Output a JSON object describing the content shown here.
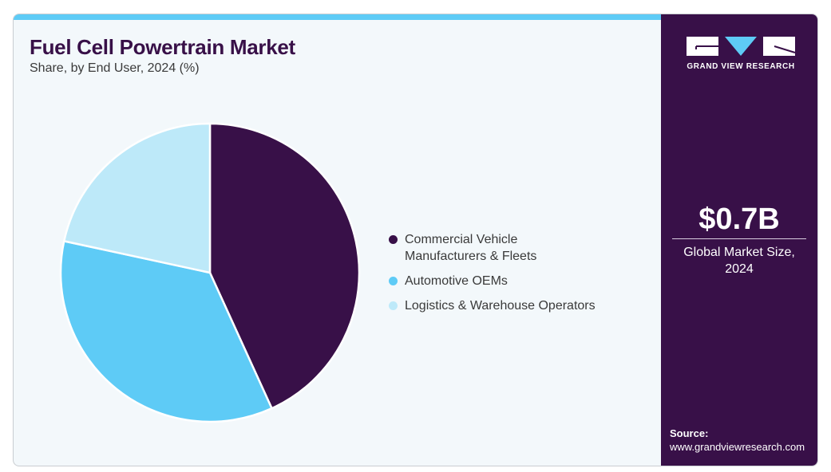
{
  "header": {
    "title": "Fuel Cell Powertrain Market",
    "subtitle": "Share, by End User, 2024 (%)"
  },
  "brand": {
    "name": "GRAND VIEW RESEARCH",
    "colors": {
      "dark": "#381048",
      "accent": "#5ecbf6",
      "light": "#bde9f9"
    }
  },
  "market": {
    "value": "$0.7B",
    "label_line1": "Global Market Size,",
    "label_line2": "2024"
  },
  "source": {
    "label": "Source:",
    "url": "www.grandviewresearch.com"
  },
  "chart_data": {
    "type": "pie",
    "title": "Fuel Cell Powertrain Market",
    "subtitle": "Share, by End User, 2024 (%)",
    "legend_position": "right",
    "start_angle": "top, clockwise",
    "slices": [
      {
        "label_line1": "Commercial Vehicle",
        "label_line2": "Manufacturers & Fleets",
        "label": "Commercial Vehicle Manufacturers & Fleets",
        "value": 43.2,
        "color": "#381048"
      },
      {
        "label_line1": "Automotive OEMs",
        "label_line2": "",
        "label": "Automotive OEMs",
        "value": 35.2,
        "color": "#5ecbf6"
      },
      {
        "label_line1": "Logistics & Warehouse Operators",
        "label_line2": "",
        "label": "Logistics & Warehouse Operators",
        "value": 21.6,
        "color": "#bde9f9"
      }
    ]
  }
}
